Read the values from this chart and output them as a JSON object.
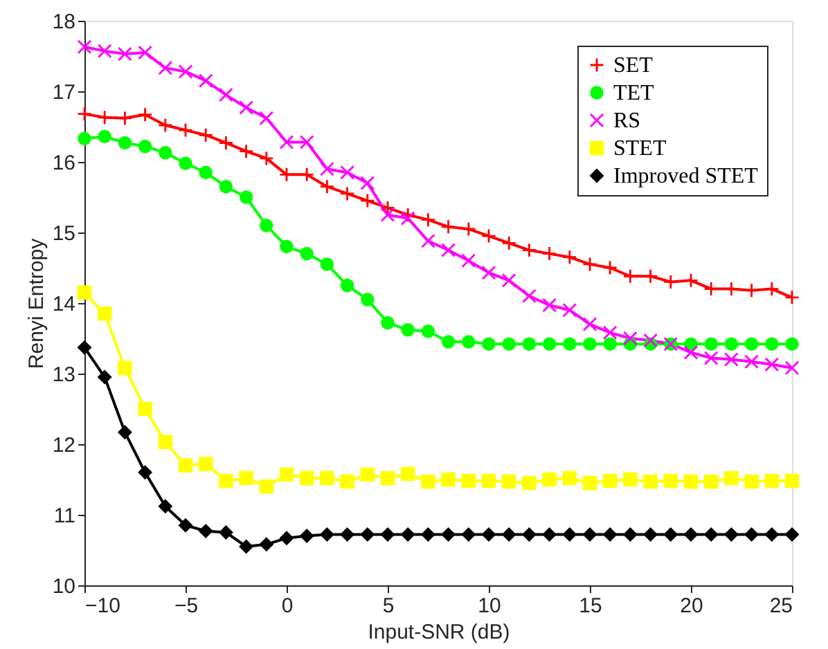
{
  "chart_data": {
    "type": "line",
    "xlabel": "Input-SNR (dB)",
    "ylabel": "Renyi Entropy",
    "x": [
      -10,
      -9,
      -8,
      -7,
      -6,
      -5,
      -4,
      -3,
      -2,
      -1,
      0,
      1,
      2,
      3,
      4,
      5,
      6,
      7,
      8,
      9,
      10,
      11,
      12,
      13,
      14,
      15,
      16,
      17,
      18,
      19,
      20,
      21,
      22,
      23,
      24,
      25
    ],
    "xlim": [
      -10,
      25
    ],
    "xticks": [
      -10,
      -5,
      0,
      5,
      10,
      15,
      20,
      25
    ],
    "ylim": [
      10,
      18
    ],
    "yticks": [
      10,
      11,
      12,
      13,
      14,
      15,
      16,
      17,
      18
    ],
    "grid": false,
    "legend": "top right",
    "line_style": "solid",
    "series": [
      {
        "name": "SET",
        "color": "#ff0000",
        "marker": "cross",
        "values": [
          16.68,
          16.63,
          16.62,
          16.67,
          16.52,
          16.45,
          16.38,
          16.27,
          16.15,
          16.05,
          15.82,
          15.82,
          15.65,
          15.55,
          15.45,
          15.35,
          15.25,
          15.18,
          15.08,
          15.05,
          14.95,
          14.85,
          14.75,
          14.7,
          14.65,
          14.55,
          14.5,
          14.38,
          14.38,
          14.3,
          14.32,
          14.2,
          14.2,
          14.18,
          14.2,
          14.08
        ]
      },
      {
        "name": "TET",
        "color": "#00ff00",
        "marker": "circle",
        "values": [
          16.33,
          16.36,
          16.27,
          16.22,
          16.13,
          15.98,
          15.85,
          15.65,
          15.5,
          15.1,
          14.8,
          14.7,
          14.55,
          14.25,
          14.05,
          13.72,
          13.62,
          13.6,
          13.45,
          13.45,
          13.42,
          13.42,
          13.42,
          13.42,
          13.42,
          13.42,
          13.42,
          13.42,
          13.42,
          13.42,
          13.42,
          13.42,
          13.42,
          13.42,
          13.42,
          13.42
        ]
      },
      {
        "name": "RS",
        "color": "#ff00ff",
        "marker": "x",
        "values": [
          17.63,
          17.57,
          17.53,
          17.55,
          17.33,
          17.28,
          17.15,
          16.95,
          16.77,
          16.62,
          16.28,
          16.28,
          15.9,
          15.85,
          15.7,
          15.25,
          15.2,
          14.88,
          14.75,
          14.6,
          14.43,
          14.32,
          14.1,
          13.97,
          13.9,
          13.7,
          13.58,
          13.5,
          13.47,
          13.42,
          13.3,
          13.22,
          13.2,
          13.17,
          13.13,
          13.08
        ]
      },
      {
        "name": "STET",
        "color": "#ffff00",
        "marker": "square",
        "values": [
          14.15,
          13.85,
          13.08,
          12.5,
          12.03,
          11.7,
          11.72,
          11.48,
          11.52,
          11.4,
          11.57,
          11.52,
          11.52,
          11.47,
          11.57,
          11.52,
          11.58,
          11.47,
          11.5,
          11.48,
          11.48,
          11.47,
          11.45,
          11.5,
          11.52,
          11.45,
          11.48,
          11.5,
          11.47,
          11.48,
          11.47,
          11.47,
          11.52,
          11.47,
          11.48,
          11.48
        ]
      },
      {
        "name": "Improved STET",
        "color": "#000000",
        "marker": "diamond",
        "values": [
          13.37,
          12.95,
          12.17,
          11.6,
          11.12,
          10.85,
          10.77,
          10.75,
          10.55,
          10.58,
          10.67,
          10.7,
          10.72,
          10.72,
          10.72,
          10.72,
          10.72,
          10.72,
          10.72,
          10.72,
          10.72,
          10.72,
          10.72,
          10.72,
          10.72,
          10.72,
          10.72,
          10.72,
          10.72,
          10.72,
          10.72,
          10.72,
          10.72,
          10.72,
          10.72,
          10.72
        ]
      }
    ]
  }
}
